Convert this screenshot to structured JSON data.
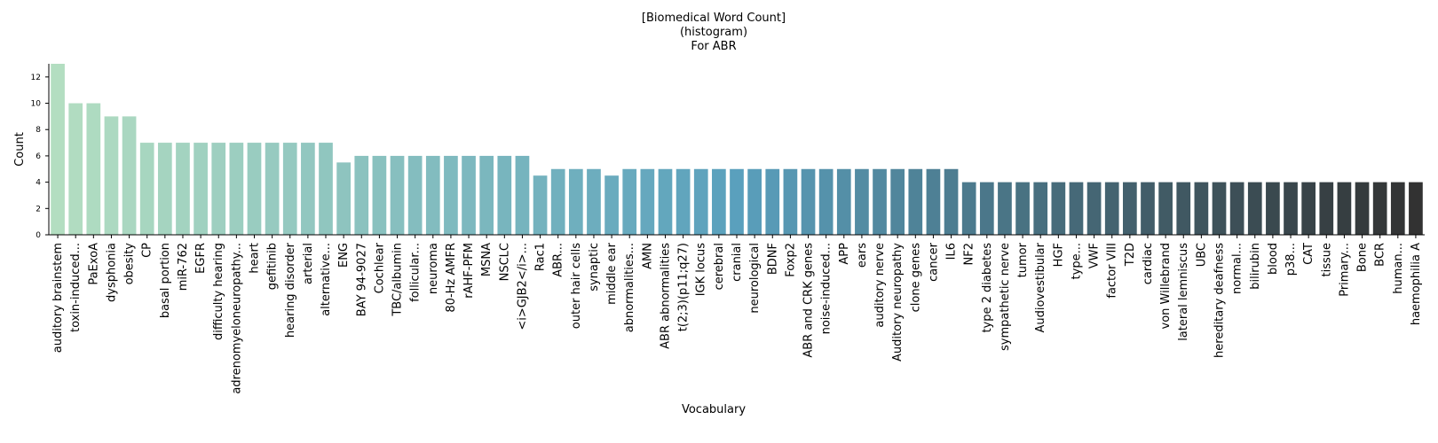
{
  "chart_data": {
    "type": "bar",
    "title_lines": [
      "[Biomedical Word Count]",
      "(histogram)",
      "For ABR"
    ],
    "xlabel": "Vocabulary",
    "ylabel": "Count",
    "ylim": [
      0,
      13
    ],
    "yticks": [
      0,
      2,
      4,
      6,
      8,
      10,
      12
    ],
    "grid": false,
    "legend": "none",
    "color_start": "#b3dec1",
    "color_mid": "#5aa0bd",
    "color_end": "#323232",
    "categories": [
      "auditory brainstem",
      "toxin-induced...",
      "PaExoA",
      "dysphonia",
      "obesity",
      "CP",
      "basal portion",
      "miR-762",
      "EGFR",
      "difficulty hearing",
      "adrenomyeloneuropathy...",
      "heart",
      "gefitinib",
      "hearing disorder",
      "arterial",
      "alternative...",
      "ENG",
      "BAY 94-9027",
      "Cochlear",
      "TBC/albumin",
      "follicular...",
      "neuroma",
      "80-Hz AMFR",
      "rAHF-PFM",
      "MSNA",
      "NSCLC",
      "<i>GJB2</i>...",
      "Rac1",
      "ABR...",
      "outer hair cells",
      "synaptic",
      "middle ear",
      "abnormalities...",
      "AMN",
      "ABR abnormalities",
      "t(2;3)(p11;q27)",
      "IGK locus",
      "cerebral",
      "cranial",
      "neurological",
      "BDNF",
      "Foxp2",
      "ABR and CRK genes",
      "noise-induced...",
      "APP",
      "ears",
      "auditory nerve",
      "Auditory neuropathy",
      "clone genes",
      "cancer",
      "IL6",
      "NF2",
      "type 2 diabetes",
      "sympathetic nerve",
      "tumor",
      "Audiovestibular",
      "HGF",
      "type...",
      "VWF",
      "factor VIII",
      "T2D",
      "cardiac",
      "von Willebrand",
      "lateral lemniscus",
      "UBC",
      "hereditary deafness",
      "normal...",
      "bilirubin",
      "blood",
      "p38...",
      "CAT",
      "tissue",
      "Primary...",
      "Bone",
      "BCR",
      "human...",
      "haemophilia A"
    ],
    "values": [
      13,
      10,
      10,
      9,
      9,
      7,
      7,
      7,
      7,
      7,
      7,
      7,
      7,
      7,
      7,
      7,
      5.5,
      6,
      6,
      6,
      6,
      6,
      6,
      6,
      6,
      6,
      6,
      4.5,
      5,
      5,
      5,
      4.5,
      5,
      5,
      5,
      5,
      5,
      5,
      5,
      5,
      5,
      5,
      5,
      5,
      5,
      5,
      5,
      5,
      5,
      5,
      5,
      4,
      4,
      4,
      4,
      4,
      4,
      4,
      4,
      4,
      4,
      4,
      4,
      4,
      4,
      4,
      4,
      4,
      4,
      4,
      4,
      4,
      4,
      4,
      4,
      4,
      4
    ]
  }
}
